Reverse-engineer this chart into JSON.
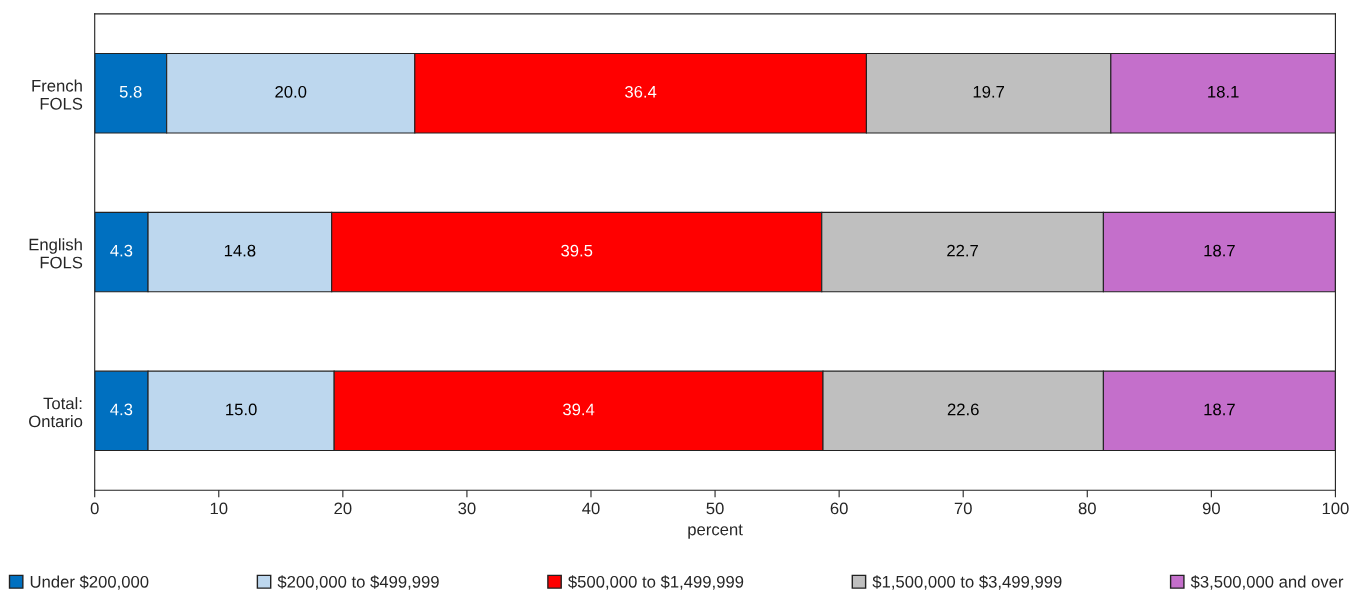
{
  "chart_data": {
    "type": "bar",
    "orientation": "horizontal",
    "stacked": true,
    "xlabel": "percent",
    "categories": [
      "French\nFOLS",
      "English\nFOLS",
      "Total:\nOntario"
    ],
    "series": [
      {
        "name": "Under $200,000",
        "color": "#0070c0",
        "values": [
          5.8,
          4.3,
          4.3
        ],
        "value_labels": [
          "5.8",
          "4.3",
          "4.3"
        ]
      },
      {
        "name": "$200,000 to $499,999",
        "color": "#bdd7ee",
        "values": [
          20.0,
          14.8,
          15.0
        ],
        "value_labels": [
          "20.0",
          "14.8",
          "15.0"
        ]
      },
      {
        "name": "$500,000 to $1,499,999",
        "color": "#ff0000",
        "values": [
          36.4,
          39.5,
          39.4
        ],
        "value_labels": [
          "36.4",
          "39.5",
          "39.4"
        ]
      },
      {
        "name": "$1,500,000 to $3,499,999",
        "color": "#bfbfbf",
        "values": [
          19.7,
          22.7,
          22.6
        ],
        "value_labels": [
          "19.7",
          "22.7",
          "22.6"
        ]
      },
      {
        "name": "$3,500,000 and over",
        "color": "#c46fcb",
        "values": [
          18.1,
          18.7,
          18.7
        ],
        "value_labels": [
          "18.1",
          "18.7",
          "18.7"
        ]
      }
    ],
    "xlim": [
      0,
      100
    ],
    "xticks": [
      0,
      10,
      20,
      30,
      40,
      50,
      60,
      70,
      80,
      90,
      100
    ],
    "legend": "bottom",
    "grid": false
  }
}
